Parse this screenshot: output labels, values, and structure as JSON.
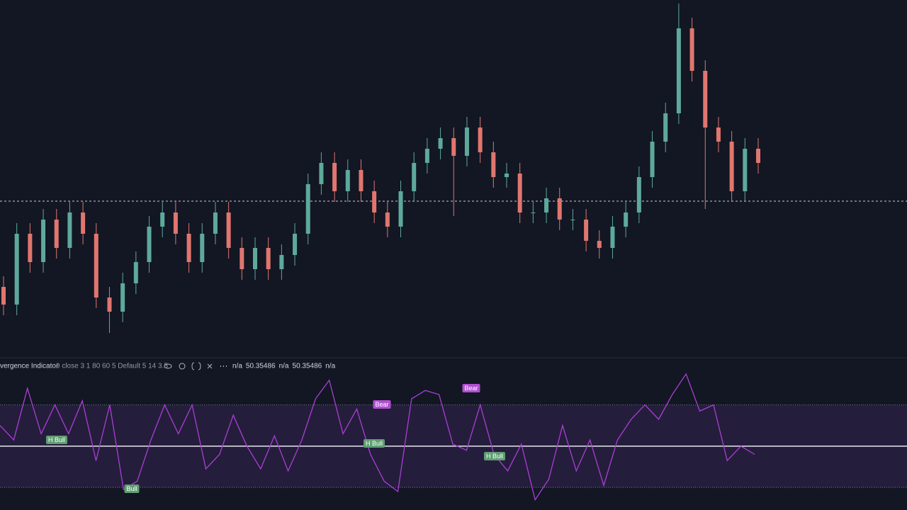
{
  "chart_data": [
    {
      "type": "candlestick",
      "ylim": [
        0,
        101
      ],
      "open": [
        20,
        15,
        35,
        27,
        39,
        31,
        41,
        35,
        17,
        13,
        21,
        27,
        37,
        41,
        35,
        27,
        35,
        41,
        31,
        25,
        31,
        25,
        29,
        35,
        49,
        55,
        47,
        53,
        47,
        41,
        37,
        47,
        55,
        59,
        62,
        57,
        65,
        58,
        51,
        52,
        41,
        41,
        45,
        39,
        39,
        33,
        31,
        37,
        41,
        51,
        61,
        69,
        93,
        81,
        65,
        61,
        47,
        59
      ],
      "high": [
        23,
        38,
        38,
        42,
        42,
        44,
        44,
        38,
        20,
        24,
        30,
        40,
        44,
        44,
        38,
        38,
        44,
        44,
        34,
        34,
        34,
        32,
        38,
        52,
        58,
        58,
        56,
        56,
        50,
        44,
        50,
        58,
        62,
        65,
        65,
        68,
        68,
        61,
        55,
        55,
        44,
        48,
        48,
        42,
        42,
        36,
        40,
        44,
        54,
        64,
        72,
        100,
        96,
        84,
        68,
        64,
        62,
        62
      ],
      "low": [
        12,
        12,
        24,
        24,
        28,
        28,
        32,
        14,
        7,
        10,
        18,
        24,
        34,
        32,
        24,
        24,
        32,
        28,
        22,
        22,
        22,
        22,
        26,
        32,
        46,
        44,
        44,
        44,
        38,
        34,
        34,
        44,
        52,
        56,
        40,
        54,
        55,
        48,
        48,
        38,
        38,
        38,
        36,
        36,
        30,
        28,
        28,
        34,
        38,
        48,
        58,
        66,
        78,
        42,
        58,
        44,
        44,
        52
      ],
      "close": [
        15,
        35,
        27,
        39,
        31,
        41,
        35,
        17,
        13,
        21,
        27,
        37,
        41,
        35,
        27,
        35,
        41,
        31,
        25,
        31,
        25,
        29,
        35,
        49,
        55,
        47,
        53,
        47,
        41,
        37,
        47,
        55,
        59,
        62,
        57,
        65,
        58,
        51,
        52,
        41,
        41,
        45,
        39,
        39,
        33,
        31,
        37,
        41,
        51,
        61,
        69,
        93,
        81,
        65,
        61,
        47,
        59,
        55
      ],
      "up_color": "#5ea99b",
      "down_color": "#e0766f",
      "price_line": 44.2
    },
    {
      "type": "line",
      "title": "vergence Indicator",
      "params": "9 close 3 1 80 60 5 Default 5 14 3.5",
      "readout": [
        "n/a",
        "50.35486",
        "n/a",
        "50.35486",
        "n/a"
      ],
      "ylim": [
        22.5,
        86
      ],
      "values": [
        60,
        53,
        78,
        56,
        70,
        56,
        72,
        43,
        70,
        29,
        33,
        53,
        70,
        56,
        70,
        39,
        46,
        65,
        50,
        39,
        55,
        38,
        53,
        73,
        82,
        56,
        68,
        46,
        33,
        28,
        73,
        77,
        75,
        51,
        48,
        70,
        46,
        38,
        51,
        24,
        34,
        60,
        38,
        53,
        31,
        53,
        63,
        70,
        63,
        75,
        85,
        67,
        70,
        43,
        50,
        46
      ],
      "color": "#a93fd4",
      "levels": [
        70,
        50,
        30
      ],
      "annotations": [
        "H Bull",
        "Bull",
        "H Bull",
        "Bear",
        "Bear",
        "H Bull"
      ]
    }
  ]
}
